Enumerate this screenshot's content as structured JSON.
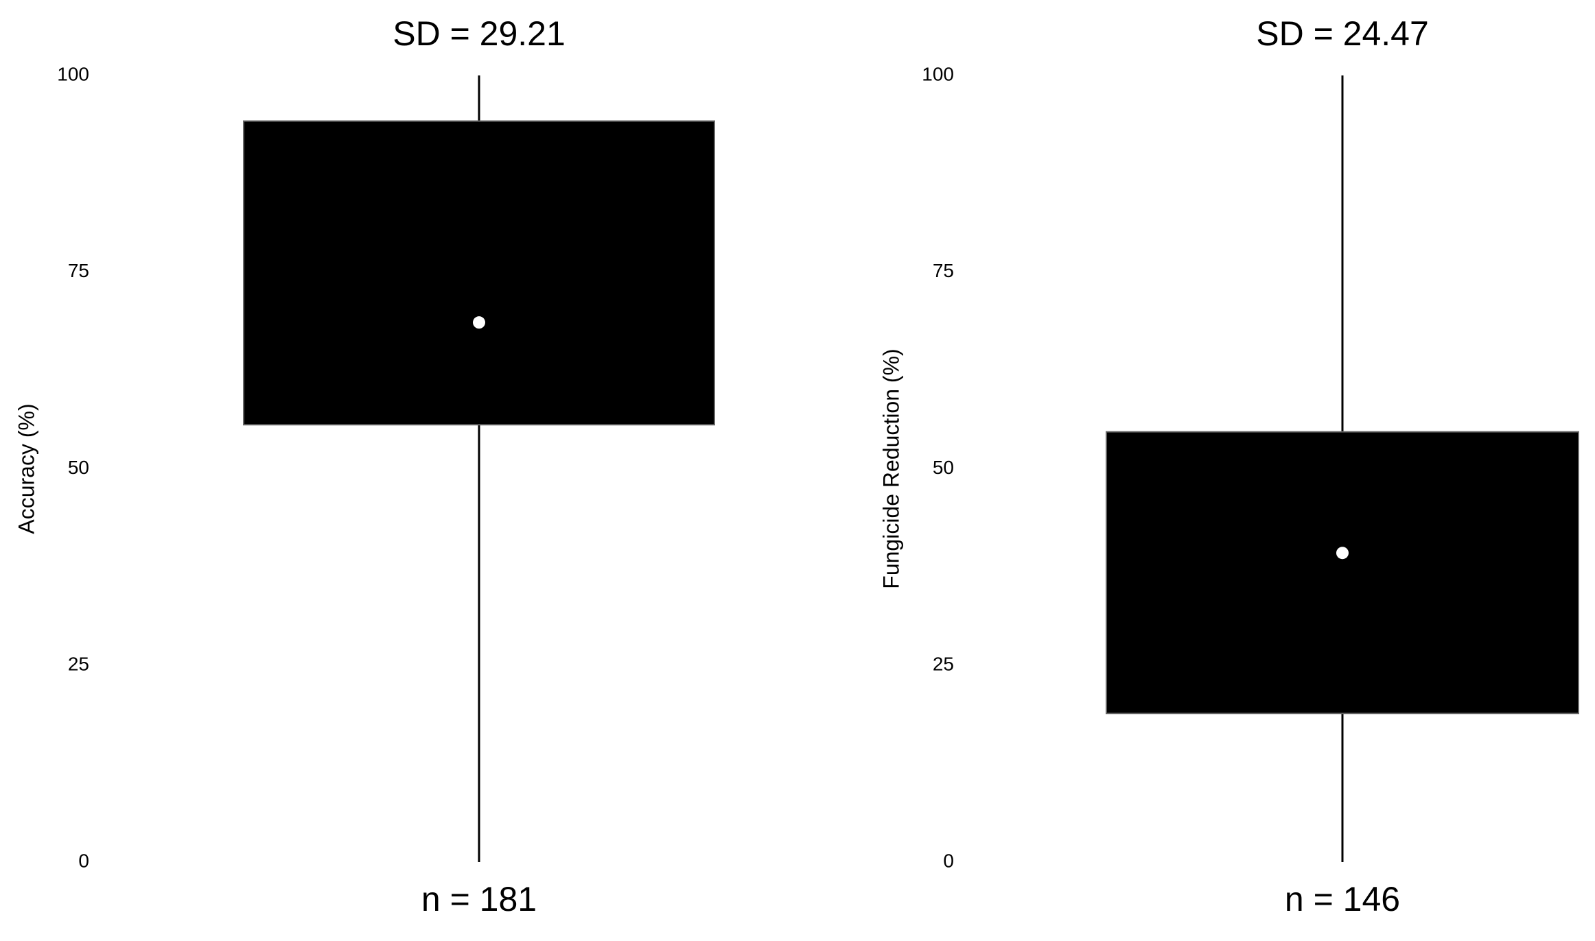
{
  "chart_data": [
    {
      "type": "box",
      "title": "SD = 29.21",
      "ylabel": "Accuracy (%)",
      "n_label": "n = 181",
      "ylim": [
        0,
        100
      ],
      "yticks": [
        0,
        25,
        50,
        75,
        100
      ],
      "whisker_low": 0,
      "q1": 55.6,
      "q3": 94.2,
      "whisker_high": 100,
      "mean": 68.6,
      "box_color": "#000000",
      "mean_color": "#ffffff"
    },
    {
      "type": "box",
      "title": "SD = 24.47",
      "ylabel": "Fungicide Reduction (%)",
      "n_label": "n = 146",
      "ylim": [
        0,
        100
      ],
      "yticks": [
        0,
        25,
        50,
        75,
        100
      ],
      "whisker_low": 0,
      "q1": 18.9,
      "q3": 54.7,
      "whisker_high": 100,
      "mean": 39.3,
      "box_color": "#000000",
      "mean_color": "#ffffff"
    }
  ]
}
